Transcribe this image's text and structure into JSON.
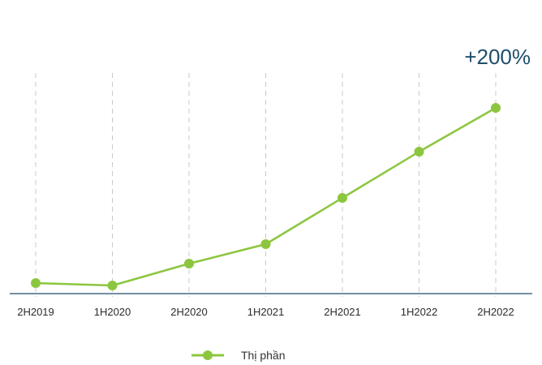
{
  "chart_data": {
    "type": "line",
    "categories": [
      "2H2019",
      "1H2020",
      "2H2020",
      "1H2021",
      "2H2021",
      "1H2022",
      "2H2022"
    ],
    "series": [
      {
        "name": "Thị phần",
        "values": [
          4,
          3,
          12,
          20,
          39,
          58,
          76
        ]
      }
    ],
    "annotation": "+200%",
    "ylim": [
      0,
      80
    ],
    "grid": "vertical-dashed",
    "legend_position": "bottom",
    "colors": {
      "line": "#8cc63f",
      "axis": "#1f4e6b",
      "grid": "#c8c8c8",
      "annotation": "#1f4e6b"
    }
  }
}
